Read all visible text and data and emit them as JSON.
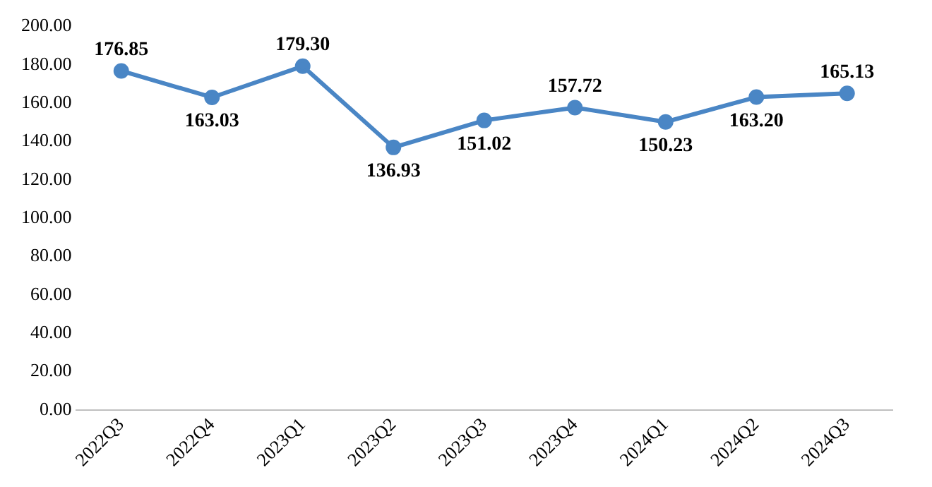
{
  "chart_data": {
    "type": "line",
    "categories": [
      "2022Q3",
      "2022Q4",
      "2023Q1",
      "2023Q2",
      "2023Q3",
      "2023Q4",
      "2024Q1",
      "2024Q2",
      "2024Q3"
    ],
    "series": [
      {
        "color": "#4a86c5",
        "values": [
          176.85,
          163.03,
          179.3,
          136.93,
          151.02,
          157.72,
          150.23,
          163.2,
          165.13
        ],
        "value_labels": [
          "176.85",
          "163.03",
          "179.30",
          "136.93",
          "151.02",
          "157.72",
          "150.23",
          "163.20",
          "165.13"
        ]
      }
    ],
    "ylim": [
      0,
      200
    ],
    "yticks": [
      {
        "value": 0,
        "label": "0.00"
      },
      {
        "value": 20,
        "label": "20.00"
      },
      {
        "value": 40,
        "label": "40.00"
      },
      {
        "value": 60,
        "label": "60.00"
      },
      {
        "value": 80,
        "label": "80.00"
      },
      {
        "value": 100,
        "label": "100.00"
      },
      {
        "value": 120,
        "label": "120.00"
      },
      {
        "value": 140,
        "label": "140.00"
      },
      {
        "value": 160,
        "label": "160.00"
      },
      {
        "value": 180,
        "label": "180.00"
      },
      {
        "value": 200,
        "label": "200.00"
      }
    ],
    "grid": false,
    "legend": false,
    "marker": "circle",
    "line_style": "solid"
  }
}
